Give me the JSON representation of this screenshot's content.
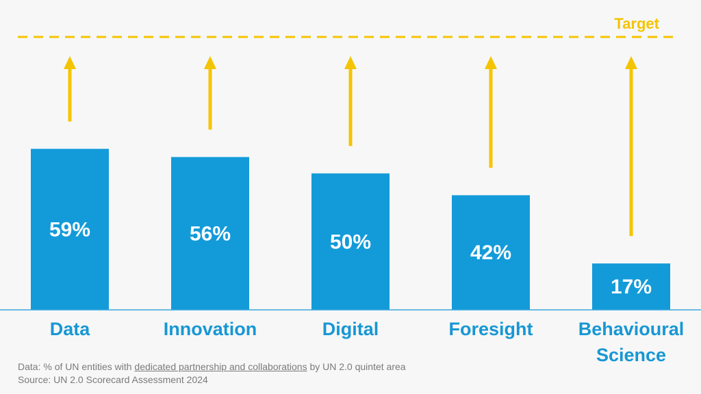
{
  "colors": {
    "bar": "#139bd9",
    "label": "#1797d4",
    "target": "#f5c400",
    "baseline": "#3aa5dd",
    "footnote": "#7a7a7a"
  },
  "chart_data": {
    "type": "bar",
    "categories": [
      "Data",
      "Innovation",
      "Digital",
      "Foresight",
      "Behavioural Science"
    ],
    "category_lines": [
      [
        "Data"
      ],
      [
        "Innovation"
      ],
      [
        "Digital"
      ],
      [
        "Foresight"
      ],
      [
        "Behavioural",
        "Science"
      ]
    ],
    "values": [
      59,
      56,
      50,
      42,
      17
    ],
    "value_labels": [
      "59%",
      "56%",
      "50%",
      "42%",
      "17%"
    ],
    "ylim": [
      0,
      100
    ],
    "target_value": 100,
    "target_label": "Target",
    "grid": false,
    "xlabel": "",
    "ylabel": ""
  },
  "footer": {
    "line1_prefix": "Data: % of UN entities with ",
    "line1_link": "dedicated partnership and collaborations",
    "line1_suffix": " by UN 2.0 quintet area",
    "line2": "Source: UN 2.0 Scorecard Assessment 2024"
  }
}
